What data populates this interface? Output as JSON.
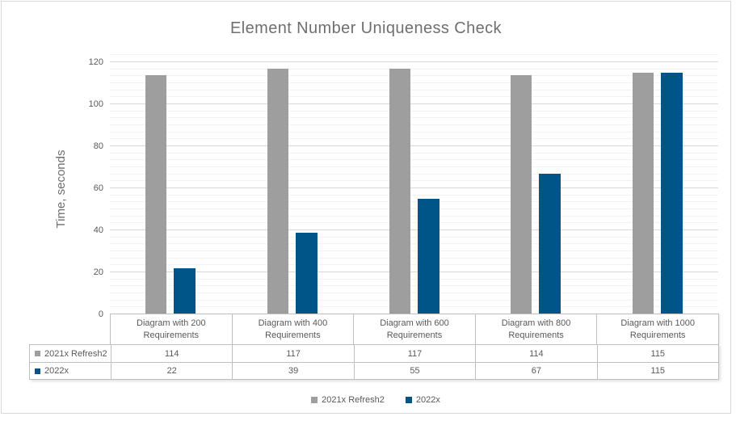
{
  "chart_data": {
    "type": "bar",
    "title": "Element Number Uniqueness Check",
    "xlabel": "",
    "ylabel": "Time, seconds",
    "ylim": [
      0,
      120
    ],
    "y_major_unit": 20,
    "y_ticks": [
      0,
      20,
      40,
      60,
      80,
      100,
      120
    ],
    "grid": true,
    "legend_position": "bottom",
    "data_table_shown": true,
    "categories": [
      "Diagram with 200 Requirements",
      "Diagram with 400 Requirements",
      "Diagram with 600 Requirements",
      "Diagram with 800 Requirements",
      "Diagram with 1000 Requirements"
    ],
    "series": [
      {
        "name": "2021x Refresh2",
        "color": "#9E9E9E",
        "values": [
          114,
          117,
          117,
          114,
          115
        ]
      },
      {
        "name": "2022x",
        "color": "#005588",
        "values": [
          22,
          39,
          55,
          67,
          115
        ]
      }
    ]
  },
  "colors": {
    "gridline_major": "#D9D9D9",
    "gridline_minor": "#F2F2F2",
    "table_border": "#BFBFBF",
    "text_muted": "#595959",
    "title_text": "#6F6F6F",
    "frame_border": "#D9D9D9"
  }
}
